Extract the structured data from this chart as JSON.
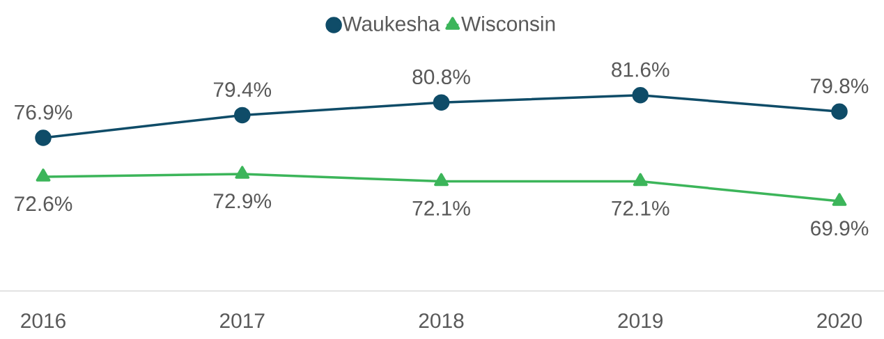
{
  "chart_data": {
    "type": "line",
    "categories": [
      "2016",
      "2017",
      "2018",
      "2019",
      "2020"
    ],
    "legend": "top",
    "series": [
      {
        "name": "Waukesha",
        "color": "#0f4c68",
        "marker": "circle",
        "values": [
          76.9,
          79.4,
          80.8,
          81.6,
          79.8
        ],
        "value_labels": [
          "76.9%",
          "79.4%",
          "80.8%",
          "81.6%",
          "79.8%"
        ]
      },
      {
        "name": "Wisconsin",
        "color": "#3cb55a",
        "marker": "triangle",
        "values": [
          72.6,
          72.9,
          72.1,
          72.1,
          69.9
        ],
        "value_labels": [
          "72.6%",
          "72.9%",
          "72.1%",
          "72.1%",
          "69.9%"
        ]
      }
    ]
  }
}
